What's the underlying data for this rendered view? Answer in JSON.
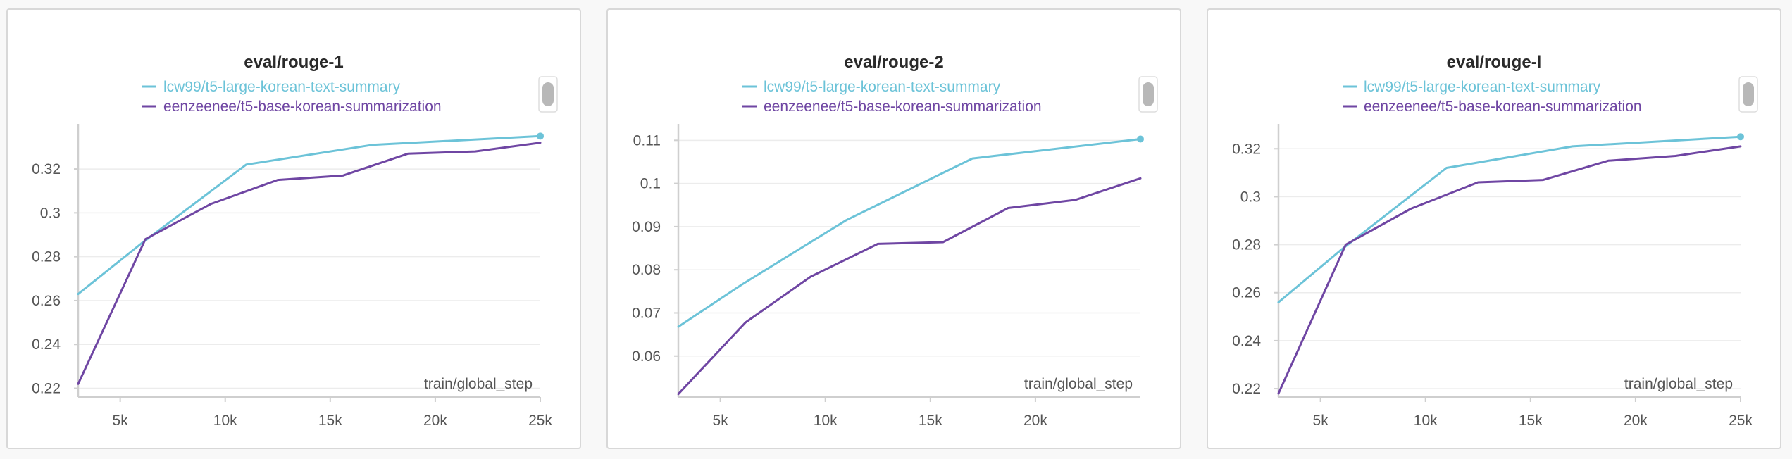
{
  "colors": {
    "series_a": "#6cc3d8",
    "series_b": "#6f46a3"
  },
  "chart_data": [
    {
      "type": "line",
      "title": "eval/rouge-1",
      "xlabel": "train/global_step",
      "xlim": [
        3000,
        25000
      ],
      "ylim": [
        0.216,
        0.338
      ],
      "xticks": [
        5000,
        10000,
        15000,
        20000,
        25000
      ],
      "xtick_labels": [
        "5k",
        "10k",
        "15k",
        "20k",
        "25k"
      ],
      "yticks": [
        0.22,
        0.24,
        0.26,
        0.28,
        0.3,
        0.32
      ],
      "ytick_labels": [
        "0.22",
        "0.24",
        "0.26",
        "0.28",
        "0.3",
        "0.32"
      ],
      "grid": true,
      "legend_position": "top-center",
      "series": [
        {
          "name": "lcw99/t5-large-korean-text-summary",
          "color": "#6cc3d8",
          "x": [
            3000,
            6000,
            11000,
            17000,
            25000
          ],
          "y": [
            0.263,
            0.286,
            0.322,
            0.331,
            0.335
          ]
        },
        {
          "name": "eenzeenee/t5-base-korean-summarization",
          "color": "#6f46a3",
          "x": [
            3000,
            6200,
            9300,
            12500,
            15600,
            18700,
            21900,
            25000
          ],
          "y": [
            0.222,
            0.288,
            0.304,
            0.315,
            0.317,
            0.327,
            0.328,
            0.332
          ]
        }
      ]
    },
    {
      "type": "line",
      "title": "eval/rouge-2",
      "xlabel": "train/global_step",
      "xlim": [
        3000,
        25000
      ],
      "ylim": [
        0.0505,
        0.1125
      ],
      "xticks": [
        5000,
        10000,
        15000,
        20000
      ],
      "xtick_labels": [
        "5k",
        "10k",
        "15k",
        "20k"
      ],
      "yticks": [
        0.06,
        0.07,
        0.08,
        0.09,
        0.1,
        0.11
      ],
      "ytick_labels": [
        "0.06",
        "0.07",
        "0.08",
        "0.09",
        "0.1",
        "0.11"
      ],
      "grid": true,
      "legend_position": "top-center",
      "series": [
        {
          "name": "lcw99/t5-large-korean-text-summary",
          "color": "#6cc3d8",
          "x": [
            3000,
            6000,
            11000,
            17000,
            25000
          ],
          "y": [
            0.0668,
            0.0765,
            0.0915,
            0.1058,
            0.1103
          ]
        },
        {
          "name": "eenzeenee/t5-base-korean-summarization",
          "color": "#6f46a3",
          "x": [
            3000,
            6200,
            9300,
            12500,
            15600,
            18700,
            21900,
            25000
          ],
          "y": [
            0.0512,
            0.0678,
            0.0784,
            0.086,
            0.0864,
            0.0943,
            0.0962,
            0.1012
          ]
        }
      ]
    },
    {
      "type": "line",
      "title": "eval/rouge-l",
      "xlabel": "train/global_step",
      "xlim": [
        3000,
        25000
      ],
      "ylim": [
        0.2165,
        0.328
      ],
      "xticks": [
        5000,
        10000,
        15000,
        20000,
        25000
      ],
      "xtick_labels": [
        "5k",
        "10k",
        "15k",
        "20k",
        "25k"
      ],
      "yticks": [
        0.22,
        0.24,
        0.26,
        0.28,
        0.3,
        0.32
      ],
      "ytick_labels": [
        "0.22",
        "0.24",
        "0.26",
        "0.28",
        "0.3",
        "0.32"
      ],
      "grid": true,
      "legend_position": "top-center",
      "series": [
        {
          "name": "lcw99/t5-large-korean-text-summary",
          "color": "#6cc3d8",
          "x": [
            3000,
            6000,
            11000,
            17000,
            25000
          ],
          "y": [
            0.256,
            0.278,
            0.312,
            0.321,
            0.325
          ]
        },
        {
          "name": "eenzeenee/t5-base-korean-summarization",
          "color": "#6f46a3",
          "x": [
            3000,
            6200,
            9300,
            12500,
            15600,
            18700,
            21900,
            25000
          ],
          "y": [
            0.218,
            0.28,
            0.295,
            0.306,
            0.307,
            0.315,
            0.317,
            0.321
          ]
        }
      ]
    }
  ]
}
